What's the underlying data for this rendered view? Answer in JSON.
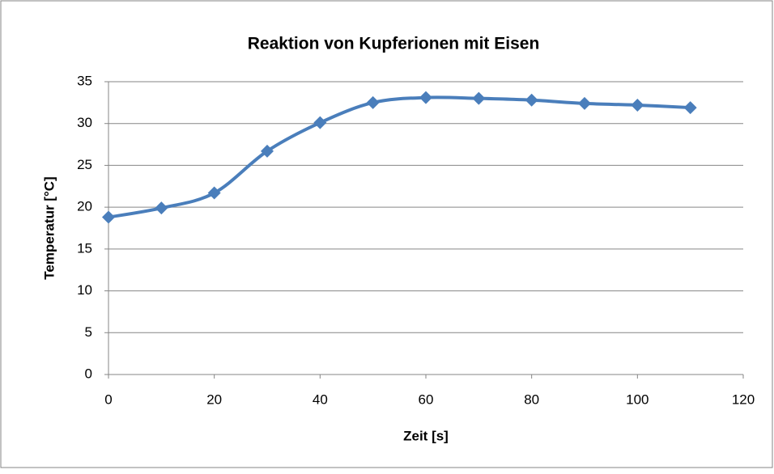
{
  "chart_data": {
    "type": "scatter",
    "title": "Reaktion von Kupferionen mit Eisen",
    "xlabel": "Zeit [s]",
    "ylabel": "Temperatur [°C]",
    "x": [
      0,
      10,
      20,
      30,
      40,
      50,
      60,
      70,
      80,
      90,
      100,
      110
    ],
    "series": [
      {
        "name": "Temperatur",
        "color": "#4a7ebb",
        "values": [
          18.8,
          19.9,
          21.7,
          26.7,
          30.1,
          32.5,
          33.1,
          33.0,
          32.8,
          32.4,
          32.2,
          31.9
        ]
      }
    ],
    "xlim": [
      0,
      120
    ],
    "xticks": [
      0,
      20,
      40,
      60,
      80,
      100,
      120
    ],
    "ylim": [
      0,
      35
    ],
    "yticks": [
      0,
      5,
      10,
      15,
      20,
      25,
      30,
      35
    ],
    "grid": true,
    "smooth": true,
    "marker": "diamond"
  }
}
